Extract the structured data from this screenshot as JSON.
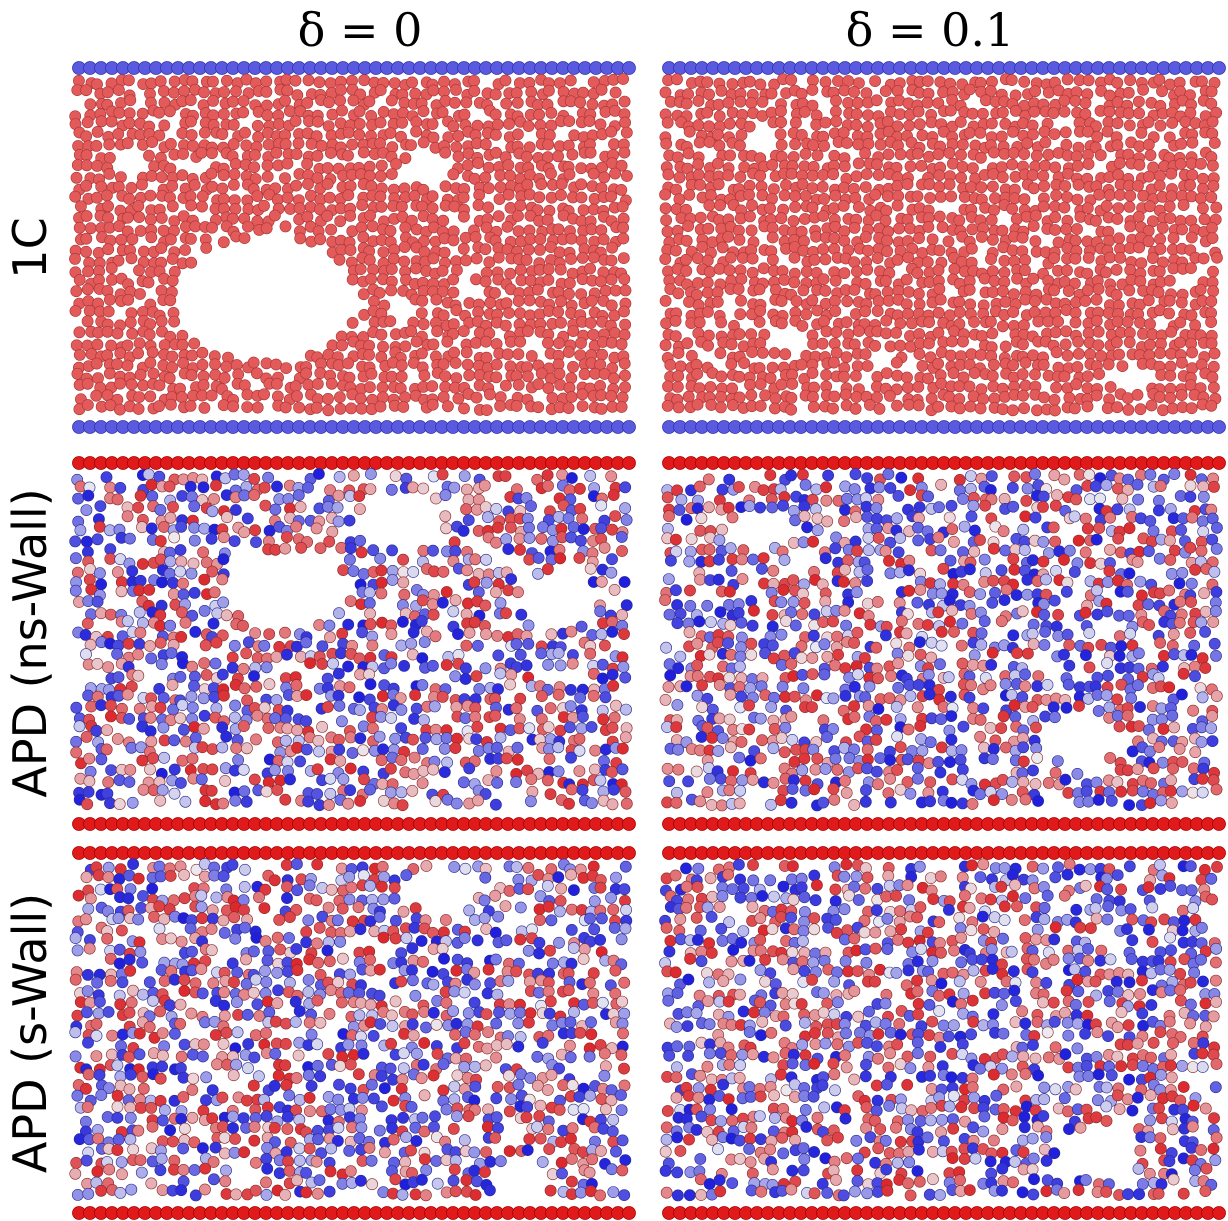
{
  "columns": [
    "δ = 0",
    "δ = 0.1"
  ],
  "rows": [
    "1C",
    "APD (ns-Wall)",
    "APD (s-Wall)"
  ]
}
